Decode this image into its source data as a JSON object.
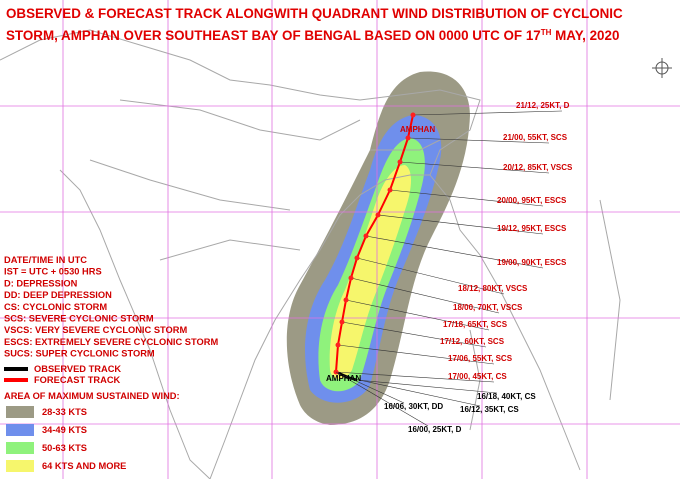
{
  "header": {
    "title_line1": "OBSERVED & FORECAST TRACK ALONGWITH QUADRANT WIND DISTRIBUTION OF CYCLONIC",
    "title_line2": "STORM, AMPHAN OVER SOUTHEAST BAY OF BENGAL BASED ON 0000 UTC OF 17",
    "title_sup": "TH",
    "title_end": " MAY, 2020"
  },
  "legend": {
    "notes": [
      "DATE/TIME IN UTC",
      "IST = UTC + 0530 HRS",
      "D: DEPRESSION",
      "DD: DEEP DEPRESSION",
      "CS: CYCLONIC STORM",
      "SCS: SEVERE CYCLONIC STORM",
      "VSCS: VERY SEVERE CYCLONIC STORM",
      "ESCS: EXTREMELY SEVERE CYCLONIC STORM",
      "SUCS: SUPER CYCLONIC STORM"
    ],
    "tracks": [
      {
        "label": "OBSERVED TRACK",
        "color": "#000000"
      },
      {
        "label": "FORECAST TRACK",
        "color": "#ff0000"
      }
    ],
    "wind_title": "AREA OF MAXIMUM SUSTAINED WIND:",
    "wind": [
      {
        "label": "28-33 KTS",
        "color": "#9c9a85"
      },
      {
        "label": "34-49 KTS",
        "color": "#6f8fec"
      },
      {
        "label": "50-63 KTS",
        "color": "#8ff27c"
      },
      {
        "label": "64 KTS AND MORE",
        "color": "#f6f66c"
      }
    ]
  },
  "map": {
    "storm_name": "AMPHAN",
    "track_labels": [
      "21/12, 25KT, D",
      "21/00, 55KT, SCS",
      "20/12, 85KT, VSCS",
      "20/00, 95KT, ESCS",
      "19/12, 95KT, ESCS",
      "19/00, 90KT, ESCS",
      "18/12, 80KT, VSCS",
      "18/00, 70KT, VSCS",
      "17/18, 65KT, SCS",
      "17/12, 60KT, SCS",
      "17/06, 55KT, SCS",
      "17/00, 45KT, CS"
    ],
    "observed_labels": [
      "16/18, 40KT, CS",
      "16/12, 35KT, CS",
      "16/06, 30KT, DD",
      "16/00, 25KT, D"
    ]
  }
}
